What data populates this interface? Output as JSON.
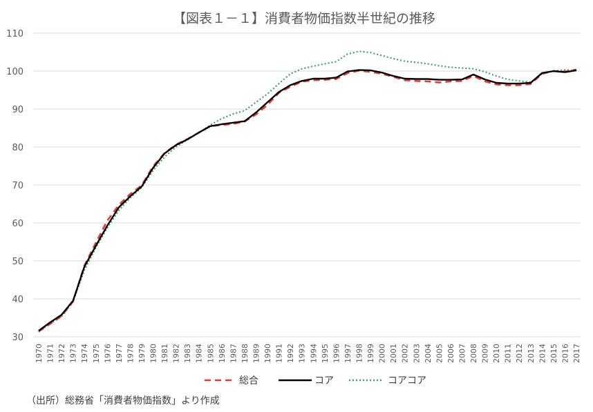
{
  "chart_data": {
    "type": "line",
    "title": "【図表１－１】消費者物価指数半世紀の推移",
    "source_note": "（出所）総務省「消費者物価指数」より作成",
    "xlabel": "",
    "ylabel": "",
    "ylim": [
      30,
      110
    ],
    "y_ticks": [
      "30",
      "40",
      "50",
      "60",
      "70",
      "80",
      "90",
      "100",
      "110"
    ],
    "grid": true,
    "legend_position": "bottom",
    "x": [
      "1970",
      "1971",
      "1972",
      "1973",
      "1974",
      "1975",
      "1976",
      "1977",
      "1978",
      "1979",
      "1980",
      "1981",
      "1982",
      "1983",
      "1984",
      "1985",
      "1986",
      "1987",
      "1988",
      "1989",
      "1990",
      "1991",
      "1992",
      "1993",
      "1994",
      "1995",
      "1996",
      "1997",
      "1998",
      "1999",
      "2000",
      "2001",
      "2002",
      "2003",
      "2004",
      "2005",
      "2006",
      "2007",
      "2008",
      "2009",
      "2010",
      "2011",
      "2012",
      "2013",
      "2014",
      "2015",
      "2016",
      "2017"
    ],
    "series": [
      {
        "name": "総合",
        "color": "#e8382f",
        "style": "dashed",
        "values": [
          31.4,
          33.4,
          35.5,
          39.3,
          48.8,
          54.8,
          60.6,
          64.7,
          67.6,
          69.9,
          74.9,
          78.4,
          80.6,
          82.1,
          83.8,
          85.5,
          85.8,
          86.1,
          86.7,
          88.6,
          91.1,
          94.3,
          95.9,
          97.2,
          97.6,
          97.7,
          97.9,
          99.5,
          100.1,
          99.8,
          99.3,
          98.5,
          97.6,
          97.4,
          97.3,
          97.0,
          97.3,
          97.4,
          98.7,
          97.3,
          96.5,
          96.3,
          96.3,
          96.6,
          99.3,
          100.0,
          99.9,
          100.4
        ]
      },
      {
        "name": "コア",
        "color": "#000000",
        "style": "solid",
        "values": [
          31.6,
          33.8,
          35.8,
          39.5,
          48.5,
          54.0,
          59.3,
          64.1,
          67.0,
          69.6,
          74.5,
          78.3,
          80.5,
          82.0,
          83.8,
          85.5,
          86.0,
          86.4,
          86.8,
          89.1,
          91.8,
          94.5,
          96.3,
          97.4,
          98.0,
          98.0,
          98.3,
          99.9,
          100.3,
          100.2,
          99.6,
          98.7,
          98.0,
          97.9,
          97.9,
          97.7,
          97.7,
          97.8,
          99.1,
          97.8,
          96.9,
          96.7,
          96.7,
          96.9,
          99.5,
          100.0,
          99.7,
          100.2
        ]
      },
      {
        "name": "コアコア",
        "color": "#3da35d",
        "style": "dotted",
        "values": [
          31.3,
          33.5,
          35.3,
          39.2,
          47.6,
          53.5,
          58.7,
          63.3,
          66.6,
          69.3,
          73.8,
          77.4,
          80.0,
          81.9,
          83.7,
          85.8,
          87.5,
          88.7,
          89.6,
          91.8,
          94.0,
          96.7,
          99.3,
          100.6,
          101.3,
          101.9,
          102.5,
          104.5,
          105.2,
          104.9,
          104.1,
          103.3,
          102.6,
          102.3,
          101.9,
          101.4,
          101.0,
          100.8,
          100.6,
          99.8,
          98.7,
          97.8,
          97.4,
          97.1,
          99.3,
          100.0,
          100.3,
          100.2
        ]
      }
    ]
  }
}
